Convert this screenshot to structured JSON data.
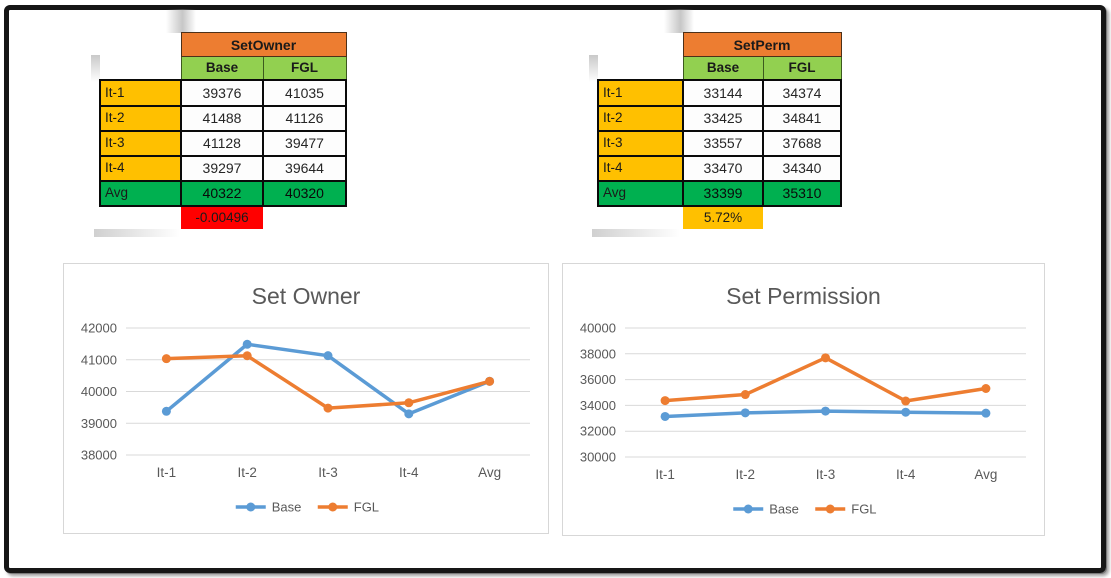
{
  "colors": {
    "orange_header": "#ED7D31",
    "green_subheader": "#92D050",
    "gold_label": "#FFC000",
    "avg_green": "#00B050",
    "delta_red": "#FF0000",
    "delta_gold": "#FFC000",
    "series_base_blue": "#5B9BD5",
    "series_fgl_orange": "#ED7D31",
    "chart_text_gray": "#595959",
    "gridline_gray": "#D9D9D9"
  },
  "tables": [
    {
      "title": "SetOwner",
      "columns": [
        "Base",
        "FGL"
      ],
      "rows": [
        {
          "label": "It-1",
          "values": [
            "39376",
            "41035"
          ]
        },
        {
          "label": "It-2",
          "values": [
            "41488",
            "41126"
          ]
        },
        {
          "label": "It-3",
          "values": [
            "41128",
            "39477"
          ]
        },
        {
          "label": "It-4",
          "values": [
            "39297",
            "39644"
          ]
        },
        {
          "label": "Avg",
          "values": [
            "40322",
            "40320"
          ],
          "is_avg": true
        }
      ],
      "change_label": "-0.00496",
      "change_color": "#FF0000"
    },
    {
      "title": "SetPerm",
      "columns": [
        "Base",
        "FGL"
      ],
      "rows": [
        {
          "label": "It-1",
          "values": [
            "33144",
            "34374"
          ]
        },
        {
          "label": "It-2",
          "values": [
            "33425",
            "34841"
          ]
        },
        {
          "label": "It-3",
          "values": [
            "33557",
            "37688"
          ]
        },
        {
          "label": "It-4",
          "values": [
            "33470",
            "34340"
          ]
        },
        {
          "label": "Avg",
          "values": [
            "33399",
            "35310"
          ],
          "is_avg": true
        }
      ],
      "change_label": "5.72%",
      "change_color": "#FFC000"
    }
  ],
  "chart_data": [
    {
      "type": "line",
      "title": "Set Owner",
      "categories": [
        "It-1",
        "It-2",
        "It-3",
        "It-4",
        "Avg"
      ],
      "series": [
        {
          "name": "Base",
          "color": "#5B9BD5",
          "values": [
            39376,
            41488,
            41128,
            39297,
            40322
          ]
        },
        {
          "name": "FGL",
          "color": "#ED7D31",
          "values": [
            41035,
            41126,
            39477,
            39644,
            40320
          ]
        }
      ],
      "xlabel": "",
      "ylabel": "",
      "ylim": [
        38000,
        42000
      ],
      "yticks": [
        38000,
        39000,
        40000,
        41000,
        42000
      ],
      "grid": true,
      "legend_position": "bottom",
      "legend": [
        "Base",
        "FGL"
      ]
    },
    {
      "type": "line",
      "title": "Set Permission",
      "categories": [
        "It-1",
        "It-2",
        "It-3",
        "It-4",
        "Avg"
      ],
      "series": [
        {
          "name": "Base",
          "color": "#5B9BD5",
          "values": [
            33144,
            33425,
            33557,
            33470,
            33399
          ]
        },
        {
          "name": "FGL",
          "color": "#ED7D31",
          "values": [
            34374,
            34841,
            37688,
            34340,
            35310
          ]
        }
      ],
      "xlabel": "",
      "ylabel": "",
      "ylim": [
        30000,
        40000
      ],
      "yticks": [
        30000,
        32000,
        34000,
        36000,
        38000,
        40000
      ],
      "grid": true,
      "legend_position": "bottom",
      "legend": [
        "Base",
        "FGL"
      ]
    }
  ]
}
